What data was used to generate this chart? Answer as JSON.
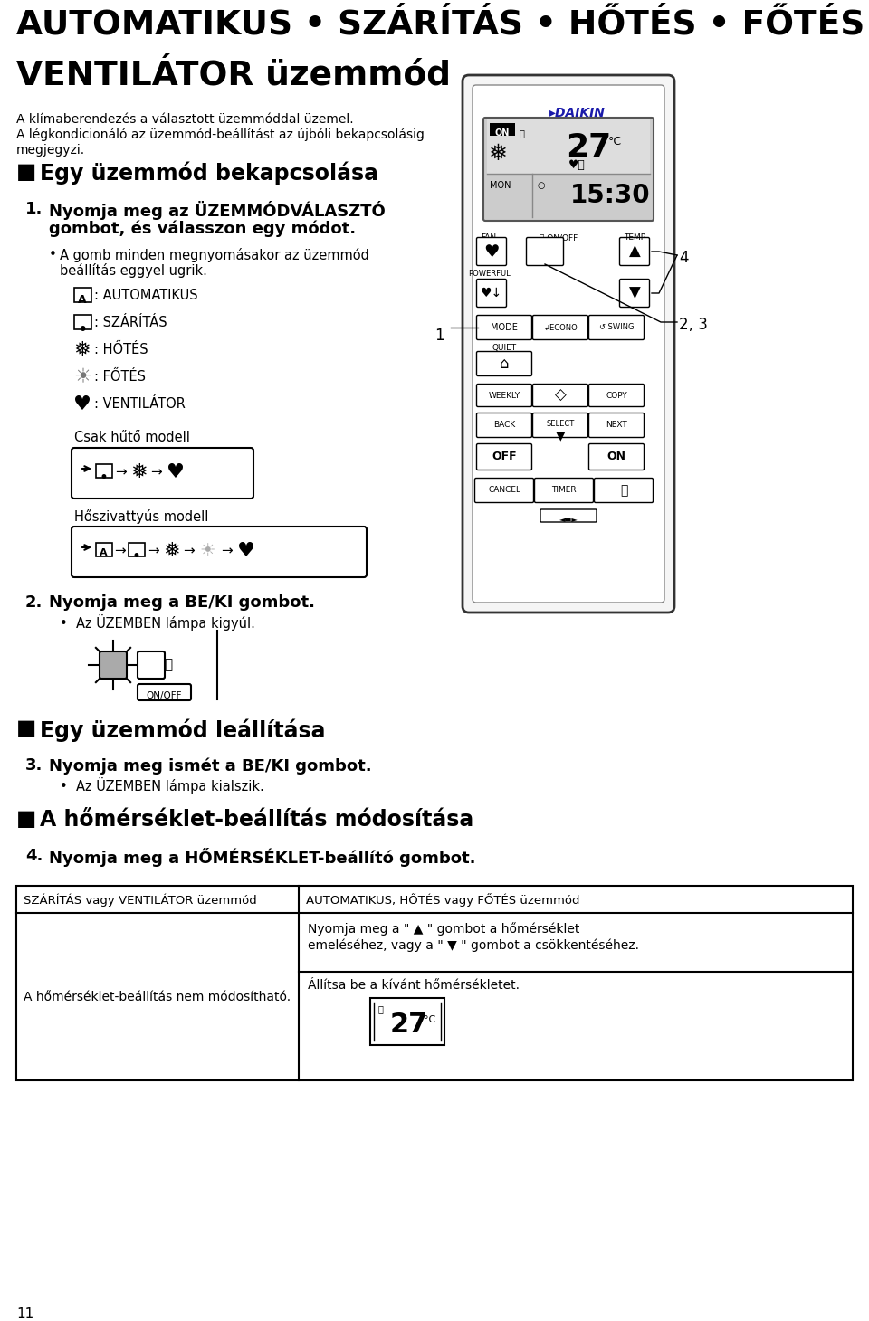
{
  "bg_color": "#ffffff",
  "title_line1": "AUTOMATIKUS • SZÁRÍTÁS • HŐTÉS • FŐTÉS •",
  "title_line2": "VENTILÁTOR üzemmód",
  "subtitle1": "A klímaberendezés a választott üzemmóddal üzemel.",
  "subtitle2": "A légkondicionáló az üzemmód-beállítást az újbóli bekapcsolásig",
  "subtitle3": "megjegyzi.",
  "sec1": "Egy üzemmód bekapcsolása",
  "s1_b1": "Nyomja meg az ÜZEMMÓDVÁLASZTÓ",
  "s1_b2": "gombot, és válasszon egy módot.",
  "s1_bullet1": "A gomb minden megnyomásakor az üzemmód",
  "s1_bullet2": "beállítás eggyel ugrik.",
  "m1_label": ": AUTOMATIKUS",
  "m2_label": ": SZÁRÍTÁS",
  "m3_label": ": HŐTÉS",
  "m4_label": ": FŐTÉS",
  "m5_label": ": VENTILÁTOR",
  "cool_only": "Csak hűtő modell",
  "heat_pump": "Hőszivattyús modell",
  "s2_b1": "Nyomja meg a BE/KI gombot.",
  "s2_bullet": "Az ÜZEMBEN lámpa kigyúl.",
  "sec2": "Egy üzemmód leállítása",
  "s3_b1": "Nyomja meg ismét a BE/KI gombot.",
  "s3_bullet": "Az ÜZEMBEN lámpa kialszik.",
  "sec3": "A hőmérséklet-beállítás módosítása",
  "s4_b1": "Nyomja meg a HŐMÉRSÉKLET-beállító gombot.",
  "tbl_h1": "SZÁRÍTÁS vagy VENTILÁTOR üzemmód",
  "tbl_h2": "AUTOMATIKUS, HŐTÉS vagy FŐTÉS üzemmód",
  "tbl_r1c1": "A hőmérséklet-beállítás nem módosítható.",
  "tbl_c2l1": "Nyomja meg a \" ▲ \" gombot a hőmérséklet",
  "tbl_c2l2": "emeléséhez, vagy a \" ▼ \" gombot a csökkentéséhez.",
  "tbl_c2l3": "Állítsa be a kívánt hőmérsékletet.",
  "page_num": "11",
  "remote_temp": "27",
  "remote_time": "15:30",
  "remote_day": "MON",
  "label_4": "4",
  "label_23": "2, 3",
  "label_1": "1"
}
